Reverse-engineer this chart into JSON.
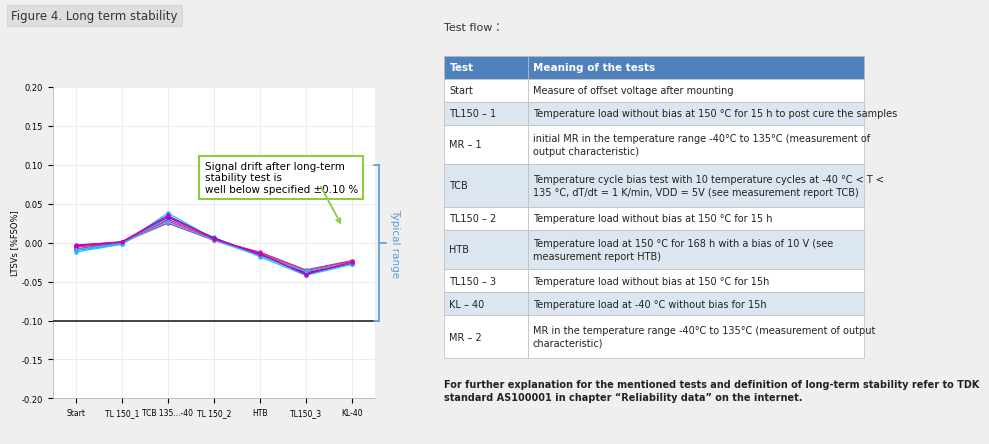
{
  "figure_title": "Figure 4. Long term stability",
  "chart": {
    "x_labels": [
      "Start",
      "TL 150_1",
      "TCB 135...-40",
      "TL 150_2",
      "HTB",
      "TL150_3",
      "KL-40"
    ],
    "ylabel": "LTSVs [%FSO%]",
    "ylim": [
      -0.2,
      0.2
    ],
    "yticks": [
      -0.2,
      -0.15,
      -0.1,
      -0.05,
      0.0,
      0.05,
      0.1,
      0.15,
      0.2
    ],
    "series": [
      [
        -0.01,
        -0.002,
        0.038,
        0.005,
        -0.014,
        -0.038,
        -0.025
      ],
      [
        -0.005,
        -0.001,
        0.03,
        0.005,
        -0.016,
        -0.04,
        -0.027
      ],
      [
        -0.008,
        0.0,
        0.025,
        0.003,
        -0.012,
        -0.035,
        -0.023
      ],
      [
        -0.012,
        -0.002,
        0.032,
        0.007,
        -0.018,
        -0.042,
        -0.028
      ],
      [
        -0.006,
        0.001,
        0.028,
        0.004,
        -0.013,
        -0.036,
        -0.024
      ],
      [
        -0.004,
        0.001,
        0.033,
        0.006,
        -0.015,
        -0.039,
        -0.026
      ],
      [
        -0.009,
        -0.001,
        0.027,
        0.003,
        -0.017,
        -0.037,
        -0.026
      ],
      [
        -0.003,
        0.001,
        0.035,
        0.005,
        -0.014,
        -0.041,
        -0.025
      ]
    ],
    "series_colors": [
      "#00BFFF",
      "#FF0090",
      "#8040C0",
      "#00C8FF",
      "#FF3060",
      "#6010D0",
      "#40A8FF",
      "#CC00BB"
    ],
    "annotation_text": "Signal drift after long-term\nstability test is\nwell below specified ±0.10 %",
    "annotation_box_color": "#88CC44",
    "hline_y": -0.1,
    "hline_color": "#444444",
    "arrow_color": "#88CC44"
  },
  "table": {
    "test_flow_label": "Test flow：",
    "header": [
      "Test",
      "Meaning of the tests"
    ],
    "header_bg": "#4F81BD",
    "header_color": "#FFFFFF",
    "rows": [
      [
        "Start",
        "Measure of offset voltage after mounting"
      ],
      [
        "TL150 – 1",
        "Temperature load without bias at 150 °C for 15 h to post cure the samples"
      ],
      [
        "MR – 1",
        "initial MR in the temperature range -40°C to 135°C (measurement of\noutput characteristic)"
      ],
      [
        "TCB",
        "Temperature cycle bias test with 10 temperature cycles at -40 °C < T <\n135 °C, dT/dt = 1 K/min, VDD = 5V (see measurement report TCB)"
      ],
      [
        "TL150 – 2",
        "Temperature load without bias at 150 °C for 15 h"
      ],
      [
        "HTB",
        "Temperature load at 150 °C for 168 h with a bias of 10 V (see\nmeasurement report HTB)"
      ],
      [
        "TL150 – 3",
        "Temperature load without bias at 150 °C for 15h"
      ],
      [
        "KL – 40",
        "Temperature load at -40 °C without bias for 15h"
      ],
      [
        "MR – 2",
        "MR in the temperature range -40°C to 135°C (measurement of output\ncharacteristic)"
      ]
    ],
    "row_bg_alt": "#DCE6F1",
    "row_bg_normal": "#FFFFFF",
    "border_color": "#BBBBBB"
  },
  "footer_text": "For further explanation for the mentioned tests and definition of long-term stability refer to TDK\nstandard AS100001 in chapter “Reliability data” on the internet.",
  "typical_range_text": "Typical range",
  "typical_range_color": "#5B9BD5",
  "bg_color": "#EFEFEF"
}
